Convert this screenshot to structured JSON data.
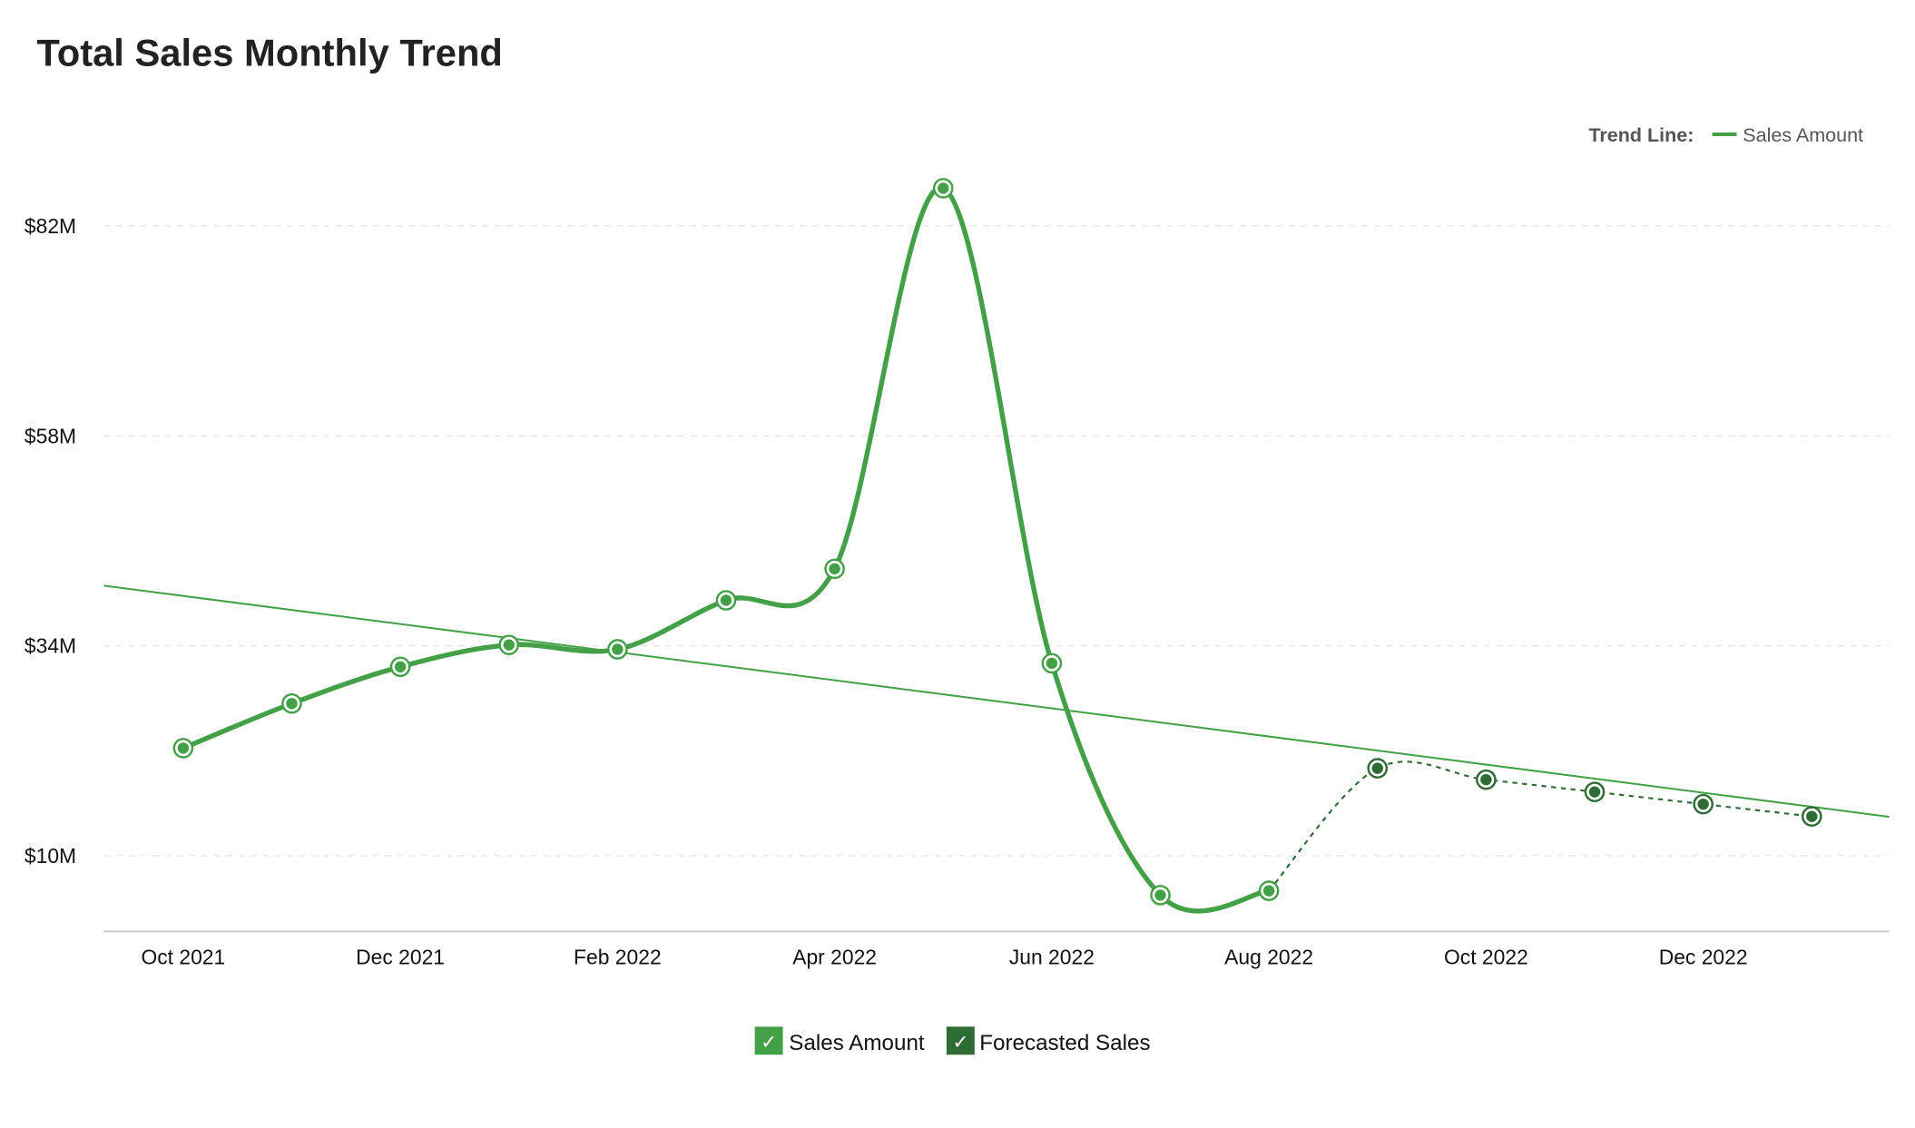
{
  "chart_data": {
    "type": "line",
    "title": "Total Sales Monthly Trend",
    "categories": [
      "Oct 2021",
      "Nov 2021",
      "Dec 2021",
      "Jan 2022",
      "Feb 2022",
      "Mar 2022",
      "Apr 2022",
      "May 2022",
      "Jun 2022",
      "Jul 2022",
      "Aug 2022",
      "Sep 2022",
      "Oct 2022",
      "Nov 2022",
      "Dec 2022",
      "Jan 2023"
    ],
    "x_tick_labels": [
      "Oct 2021",
      "Dec 2021",
      "Feb 2022",
      "Apr 2022",
      "Jun 2022",
      "Aug 2022",
      "Oct 2022",
      "Dec 2022"
    ],
    "y_tick_labels": [
      "$10M",
      "$34M",
      "$58M",
      "$82M"
    ],
    "y_ticks": [
      10,
      34,
      58,
      82
    ],
    "ylim": [
      1.5,
      92
    ],
    "grid": "horizontal dashed",
    "series": [
      {
        "name": "Sales Amount",
        "color": "#43a047",
        "style": "solid smooth",
        "values": [
          22.3,
          27.4,
          31.6,
          34.1,
          33.6,
          39.2,
          42.8,
          86.3,
          32.0,
          5.5,
          6.0,
          null,
          null,
          null,
          null,
          null
        ]
      },
      {
        "name": "Forecasted Sales",
        "color": "#2e6b35",
        "style": "dashed smooth",
        "values": [
          null,
          null,
          null,
          null,
          null,
          null,
          null,
          null,
          null,
          null,
          6.0,
          20.0,
          18.7,
          17.3,
          15.9,
          14.5
        ]
      }
    ],
    "trend_line": {
      "label": "Trend Line:",
      "series": "Sales Amount",
      "start_value": 39.7,
      "end_value": 15.6,
      "color": "#43a047"
    },
    "legend": {
      "placement": "bottom-center",
      "items": [
        {
          "label": "Sales Amount",
          "color": "#43a047",
          "checked": true
        },
        {
          "label": "Forecasted Sales",
          "color": "#2e6b35",
          "checked": true
        }
      ]
    },
    "trend_legend_placement": "top-right"
  }
}
